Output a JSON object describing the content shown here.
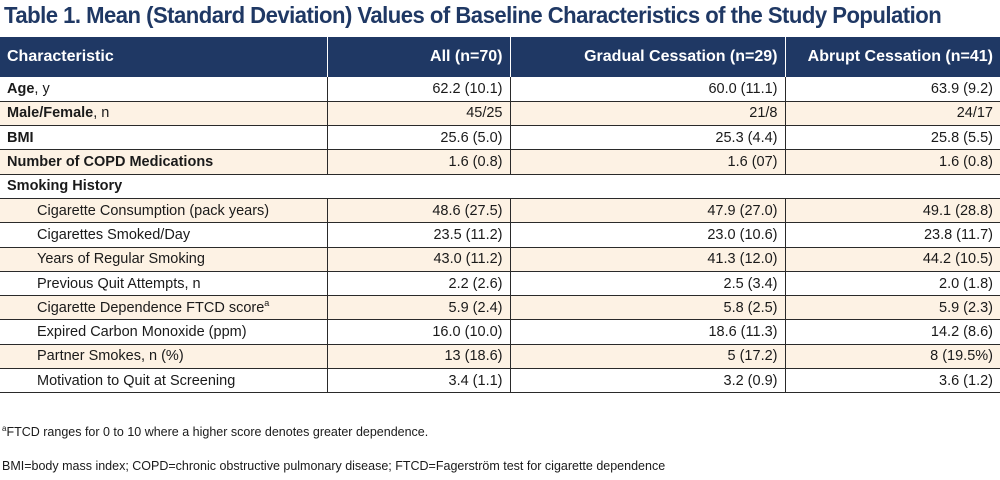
{
  "title": "Table 1. Mean (Standard Deviation) Values of Baseline Characteristics of the Study Population",
  "header": {
    "characteristic": "Characteristic",
    "all": "All (n=70)",
    "gradual": "Gradual Cessation (n=29)",
    "abrupt": "Abrupt Cessation (n=41)"
  },
  "rows": {
    "age": {
      "label": "Age",
      "suffix": ", y",
      "all": "62.2 (10.1)",
      "gradual": "60.0 (11.1)",
      "abrupt": "63.9 (9.2)"
    },
    "sex": {
      "label": "Male/Female",
      "suffix": ", n",
      "all": "45/25",
      "gradual": "21/8",
      "abrupt": "24/17"
    },
    "bmi": {
      "label": "BMI",
      "all": "25.6 (5.0)",
      "gradual": "25.3 (4.4)",
      "abrupt": "25.8 (5.5)"
    },
    "copd_meds": {
      "label": "Number of COPD Medications",
      "all": "1.6 (0.8)",
      "gradual": "1.6 (07)",
      "abrupt": "1.6 (0.8)"
    },
    "smoking_history": {
      "label": "Smoking History"
    },
    "pack_years": {
      "label": "Cigarette Consumption (pack years)",
      "all": "48.6 (27.5)",
      "gradual": "47.9 (27.0)",
      "abrupt": "49.1 (28.8)"
    },
    "cigs_day": {
      "label": "Cigarettes Smoked/Day",
      "all": "23.5 (11.2)",
      "gradual": "23.0 (10.6)",
      "abrupt": "23.8 (11.7)"
    },
    "years_smoking": {
      "label": "Years of Regular Smoking",
      "all": "43.0 (11.2)",
      "gradual": "41.3 (12.0)",
      "abrupt": "44.2 (10.5)"
    },
    "quit_attempts": {
      "label": "Previous Quit Attempts, n",
      "all": "2.2 (2.6)",
      "gradual": "2.5 (3.4)",
      "abrupt": "2.0 (1.8)"
    },
    "ftcd": {
      "label": "Cigarette Dependence FTCD score",
      "mark": "a",
      "all": "5.9 (2.4)",
      "gradual": "5.8 (2.5)",
      "abrupt": "5.9 (2.3)"
    },
    "co": {
      "label": "Expired Carbon Monoxide (ppm)",
      "all": "16.0 (10.0)",
      "gradual": "18.6 (11.3)",
      "abrupt": "14.2 (8.6)"
    },
    "partner": {
      "label": "Partner Smokes, n (%)",
      "all": "13 (18.6)",
      "gradual": "5 (17.2)",
      "abrupt": "8 (19.5%)"
    },
    "motivation": {
      "label": "Motivation to Quit at Screening",
      "all": "3.4 (1.1)",
      "gradual": "3.2 (0.9)",
      "abrupt": "3.6 (1.2)"
    }
  },
  "footnotes": {
    "mark": "a",
    "ftcd_note": "FTCD ranges for 0 to 10 where a higher score denotes greater dependence.",
    "abbreviations": "BMI=body mass index; COPD=chronic obstructive pulmonary disease; FTCD=Fagerström test for cigarette dependence"
  },
  "colors": {
    "header_bg": "#1f3864",
    "title_text": "#1f3864",
    "band_row_bg": "#fdf2e4"
  }
}
